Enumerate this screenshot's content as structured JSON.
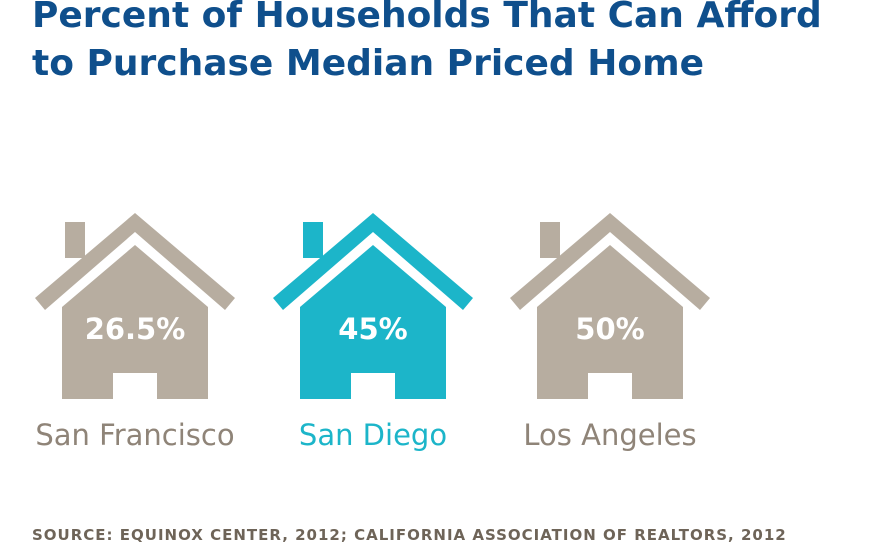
{
  "chart_data": {
    "type": "pictograph",
    "title_lines": [
      "Percent of Households That Can Afford",
      "to Purchase Median Priced Home"
    ],
    "categories": [
      "San Francisco",
      "San Diego",
      "Los Angeles"
    ],
    "values": [
      26.5,
      45,
      50
    ],
    "value_labels": [
      "26.5%",
      "45%",
      "50%"
    ],
    "highlight_category": "San Diego",
    "source": "SOURCE: EQUINOX CENTER, 2012; CALIFORNIA ASSOCIATION OF REALTORS, 2012"
  },
  "colors": {
    "title": "#0f4f8c",
    "house_default": "#b7ada0",
    "house_highlight": "#1cb5c9",
    "label_default": "#8f8478",
    "label_highlight": "#1cb5c9",
    "value_text": "#ffffff",
    "source": "#6e6458"
  },
  "icons": {
    "house": "house-icon"
  }
}
